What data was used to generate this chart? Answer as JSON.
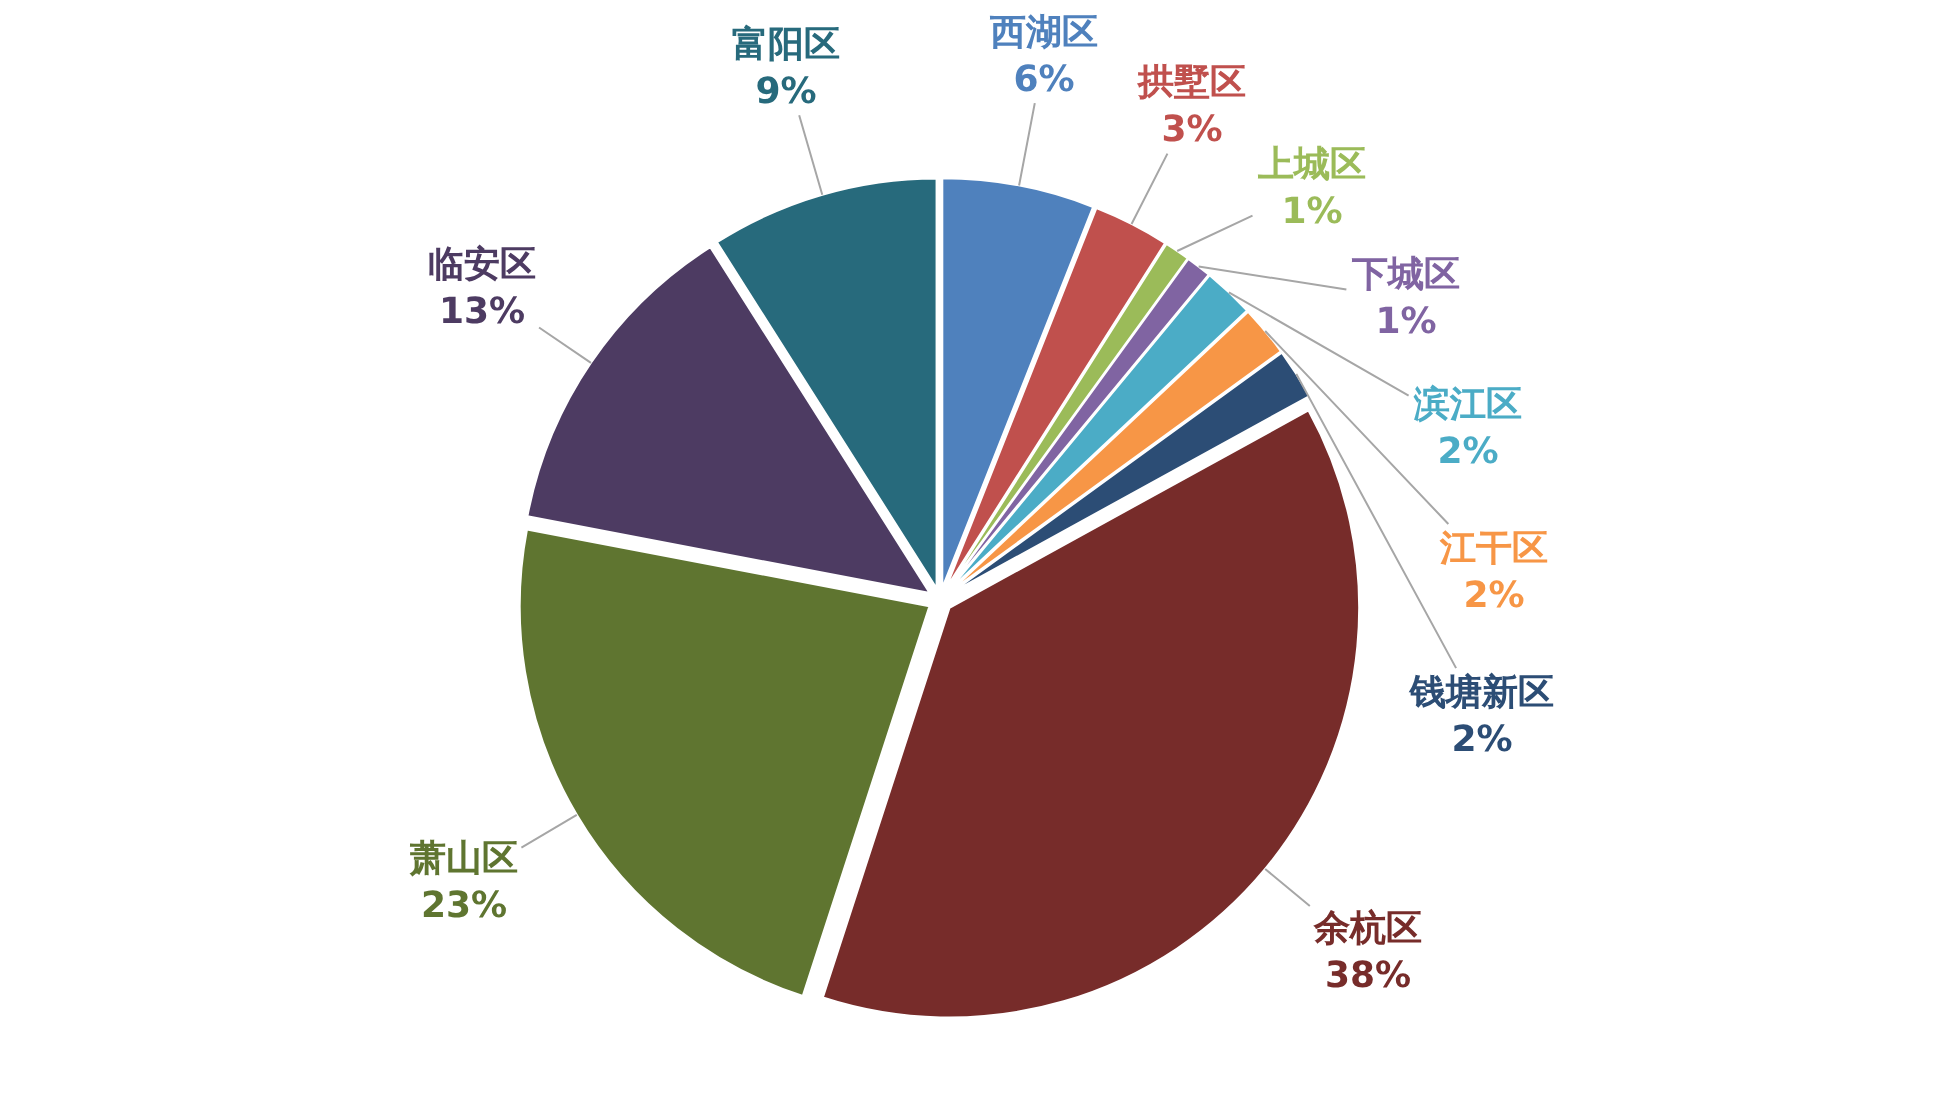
{
  "chart_data": {
    "type": "pie",
    "categories": [
      "西湖区",
      "拱墅区",
      "上城区",
      "下城区",
      "滨江区",
      "江干区",
      "钱塘新区",
      "余杭区",
      "萧山区",
      "临安区",
      "富阳区"
    ],
    "values": [
      6,
      3,
      1,
      1,
      2,
      2,
      2,
      38,
      23,
      13,
      9
    ],
    "value_labels": [
      "6%",
      "3%",
      "1%",
      "1%",
      "2%",
      "2%",
      "2%",
      "38%",
      "23%",
      "13%",
      "9%"
    ],
    "colors": [
      "#4f81bd",
      "#c0504d",
      "#9bbb59",
      "#8064a2",
      "#4bacc6",
      "#f79646",
      "#2c4d75",
      "#772c2a",
      "#5f7530",
      "#4d3b62",
      "#276a7c"
    ]
  }
}
